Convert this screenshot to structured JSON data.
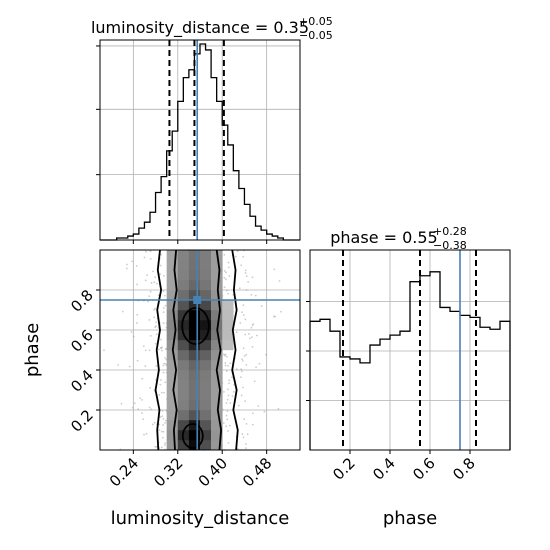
{
  "chart_data": {
    "type": "corner",
    "parameters": [
      "luminosity_distance",
      "phase"
    ],
    "truths": {
      "luminosity_distance": 0.355,
      "phase": 0.75
    },
    "xlabel": "luminosity_distance",
    "ylabel": "phase",
    "panels": [
      {
        "id": "luminosity_distance-1d",
        "type": "histogram",
        "parameter": "luminosity_distance",
        "title_prefix": "luminosity_distance = 0.35",
        "title_sup": "+0.05",
        "title_sub": "−0.05",
        "median": 0.35,
        "err_plus": 0.05,
        "err_minus": 0.05,
        "quantile_lines": [
          0.305,
          0.35,
          0.403
        ],
        "xlim": [
          0.18,
          0.54
        ],
        "ymax": 1.0,
        "bin_edges": [
          0.18,
          0.19,
          0.2,
          0.21,
          0.22,
          0.23,
          0.24,
          0.25,
          0.26,
          0.27,
          0.28,
          0.29,
          0.3,
          0.31,
          0.32,
          0.33,
          0.34,
          0.35,
          0.36,
          0.37,
          0.38,
          0.39,
          0.4,
          0.41,
          0.42,
          0.43,
          0.44,
          0.45,
          0.46,
          0.47,
          0.48,
          0.49,
          0.5,
          0.51,
          0.52,
          0.53,
          0.54
        ],
        "counts": [
          0.0,
          0.0,
          0.0,
          0.01,
          0.01,
          0.02,
          0.03,
          0.06,
          0.09,
          0.14,
          0.24,
          0.32,
          0.45,
          0.55,
          0.7,
          0.82,
          0.86,
          0.94,
          0.99,
          0.96,
          0.82,
          0.7,
          0.58,
          0.48,
          0.35,
          0.26,
          0.18,
          0.12,
          0.07,
          0.05,
          0.03,
          0.02,
          0.01,
          0.0,
          0.0,
          0.0
        ],
        "ytick_positions": [
          0.33,
          0.66,
          0.98
        ],
        "xticks": [
          0.24,
          0.32,
          0.4,
          0.48
        ],
        "xtick_labels": [
          "0.24",
          "0.32",
          "0.40",
          "0.48"
        ]
      },
      {
        "id": "phase-1d",
        "type": "histogram",
        "parameter": "phase",
        "title_prefix": "phase = 0.55",
        "title_sup": "+0.28",
        "title_sub": "−0.38",
        "median": 0.55,
        "err_plus": 0.28,
        "err_minus": 0.38,
        "quantile_lines": [
          0.165,
          0.55,
          0.83
        ],
        "xlim": [
          0.0,
          1.0
        ],
        "ymax": 1.0,
        "bin_edges": [
          0.0,
          0.05,
          0.1,
          0.15,
          0.2,
          0.25,
          0.3,
          0.35,
          0.4,
          0.45,
          0.5,
          0.55,
          0.6,
          0.65,
          0.7,
          0.75,
          0.8,
          0.85,
          0.9,
          0.95,
          1.0
        ],
        "counts": [
          0.65,
          0.66,
          0.6,
          0.47,
          0.46,
          0.44,
          0.53,
          0.56,
          0.58,
          0.6,
          0.85,
          0.88,
          0.9,
          0.72,
          0.7,
          0.68,
          0.67,
          0.62,
          0.61,
          0.65
        ],
        "ytick_positions": [
          0.25,
          0.5,
          0.75
        ],
        "xticks": [
          0.2,
          0.4,
          0.6,
          0.8
        ],
        "xtick_labels": [
          "0.2",
          "0.4",
          "0.6",
          "0.8"
        ]
      },
      {
        "id": "2d-density",
        "type": "2d-density",
        "x_parameter": "luminosity_distance",
        "y_parameter": "phase",
        "xlim": [
          0.18,
          0.54
        ],
        "ylim": [
          0.0,
          1.0
        ],
        "xticks": [
          0.24,
          0.32,
          0.4,
          0.48
        ],
        "xtick_labels": [
          "0.24",
          "0.32",
          "0.40",
          "0.48"
        ],
        "yticks": [
          0.2,
          0.4,
          0.6,
          0.8
        ],
        "ytick_labels": [
          "0.2",
          "0.4",
          "0.6",
          "0.8"
        ],
        "contours": [
          {
            "level": "outer",
            "x_left": [
              0.285,
              0.283,
              0.287,
              0.28,
              0.286,
              0.282,
              0.288,
              0.283,
              0.29,
              0.284,
              0.288
            ],
            "x_right": [
              0.425,
              0.428,
              0.42,
              0.426,
              0.418,
              0.424,
              0.419,
              0.426,
              0.421,
              0.424,
              0.418
            ],
            "y": [
              0.0,
              0.1,
              0.2,
              0.3,
              0.4,
              0.5,
              0.6,
              0.7,
              0.8,
              0.9,
              1.0
            ]
          },
          {
            "level": "middle",
            "x_left": [
              0.315,
              0.313,
              0.318,
              0.312,
              0.317,
              0.311,
              0.316,
              0.312,
              0.318,
              0.314,
              0.317
            ],
            "x_right": [
              0.395,
              0.398,
              0.392,
              0.396,
              0.39,
              0.397,
              0.391,
              0.396,
              0.392,
              0.395,
              0.39
            ],
            "y": [
              0.0,
              0.1,
              0.2,
              0.3,
              0.4,
              0.5,
              0.6,
              0.7,
              0.8,
              0.9,
              1.0
            ]
          }
        ],
        "cores": [
          {
            "cx": 0.352,
            "cy": 0.62,
            "rx": 0.024,
            "ry": 0.09
          },
          {
            "cx": 0.347,
            "cy": 0.07,
            "rx": 0.018,
            "ry": 0.06
          }
        ]
      }
    ]
  }
}
